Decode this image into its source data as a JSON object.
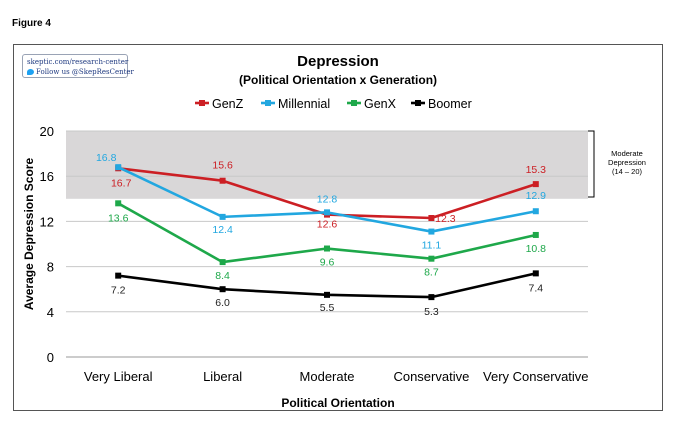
{
  "figure_label": "Figure 4",
  "branding": {
    "site": "skeptic.com/research-center",
    "follow": "Follow us @SkepResCenter",
    "icon": "twitter-bird-icon"
  },
  "annotation": {
    "line1": "Moderate",
    "line2": "Depression",
    "line3": "(14 – 20)"
  },
  "chart_data": {
    "type": "line",
    "title": "Depression",
    "subtitle": "(Political Orientation x Generation)",
    "xlabel": "Political Orientation",
    "ylabel": "Average Depression Score",
    "ylim": [
      0,
      20
    ],
    "yticks": [
      "0",
      "4",
      "8",
      "12",
      "16",
      "20"
    ],
    "categories": [
      "Very Liberal",
      "Liberal",
      "Moderate",
      "Conservative",
      "Very Conservative"
    ],
    "shaded_band": [
      14,
      20
    ],
    "legend_position": "top",
    "grid": true,
    "series": [
      {
        "name": "GenZ",
        "color": "#cc1f24",
        "values": [
          16.7,
          15.6,
          12.6,
          12.3,
          15.3
        ],
        "labels": [
          "16.7",
          "15.6",
          "12.6",
          "12.3",
          "15.3"
        ]
      },
      {
        "name": "Millennial",
        "color": "#22a7e0",
        "values": [
          16.8,
          12.4,
          12.8,
          11.1,
          12.9
        ],
        "labels": [
          "16.8",
          "12.4",
          "12.8",
          "11.1",
          "12.9"
        ]
      },
      {
        "name": "GenX",
        "color": "#1ea84a",
        "values": [
          13.6,
          8.4,
          9.6,
          8.7,
          10.8
        ],
        "labels": [
          "13.6",
          "8.4",
          "9.6",
          "8.7",
          "10.8"
        ]
      },
      {
        "name": "Boomer",
        "color": "#000000",
        "values": [
          7.2,
          6.0,
          5.5,
          5.3,
          7.4
        ],
        "labels": [
          "7.2",
          "6.0",
          "5.5",
          "5.3",
          "7.4"
        ]
      }
    ]
  }
}
